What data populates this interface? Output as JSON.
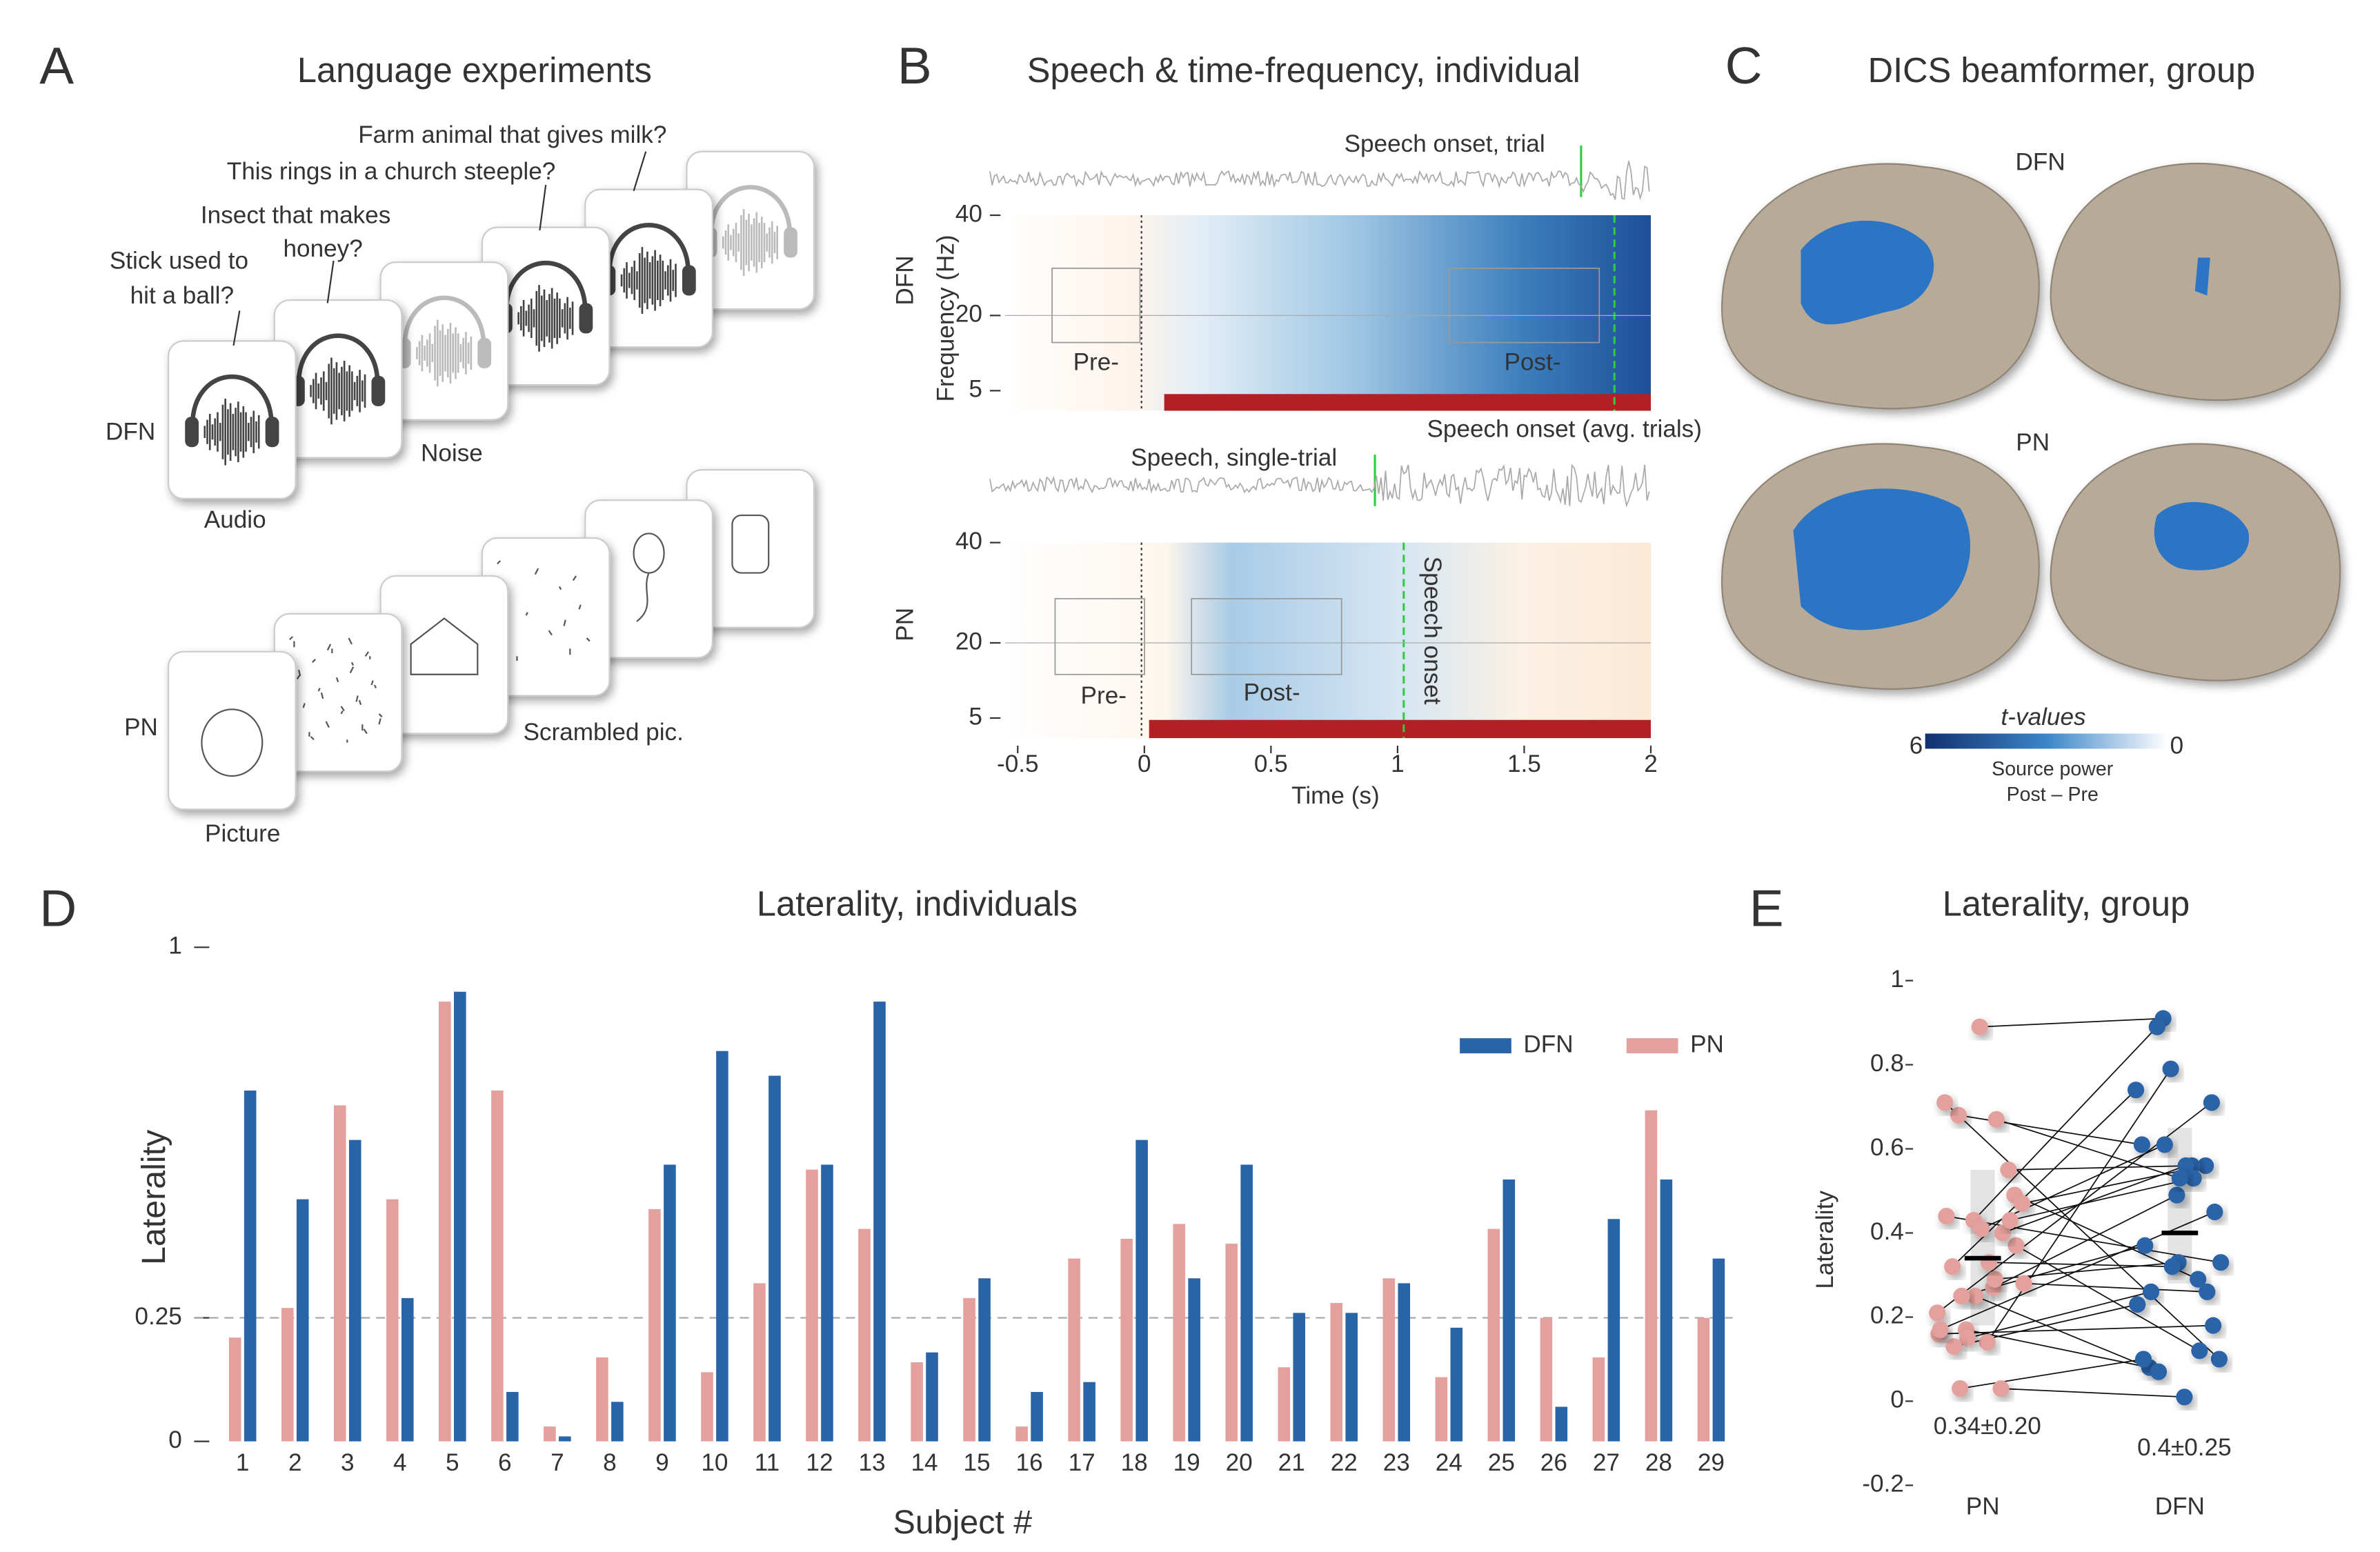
{
  "panels": {
    "A": {
      "letter": "A",
      "title": "Language experiments",
      "questions": [
        [
          "Farm animal that gives milk?"
        ],
        [
          "This rings in a church steeple?"
        ],
        [
          "Insect that makes",
          "honey?"
        ],
        [
          "Stick used to",
          "hit a ball?"
        ]
      ],
      "labels": {
        "dfn": "DFN",
        "audio": "Audio",
        "noise": "Noise",
        "pn": "PN",
        "picture": "Picture",
        "scrambled": "Scrambled pic."
      }
    },
    "B": {
      "letter": "B",
      "title": "Speech & time-frequency, individual",
      "rows": [
        "DFN",
        "PN"
      ],
      "ylabel": "Frequency (Hz)",
      "xlabel": "Time (s)",
      "xlim": [
        -0.55,
        2
      ],
      "xticks": [
        -0.5,
        0,
        0.5,
        1,
        1.5,
        2
      ],
      "ylim": [
        1,
        40
      ],
      "yticks": [
        5,
        20,
        40
      ],
      "annotations": {
        "onset_trial": "Speech onset, trial",
        "onset_avg": "Speech onset (avg. trials)",
        "single": "Speech, single-trial",
        "onset": "Speech onset",
        "pre": "Pre-",
        "post": "Post-"
      }
    },
    "C": {
      "letter": "C",
      "title": "DICS beamformer, group",
      "rows": [
        "DFN",
        "PN"
      ],
      "colorbar": {
        "title": "t-values",
        "min_label": "6",
        "max_label": "0",
        "caption": [
          "Source power",
          "Post – Pre"
        ]
      }
    }
  },
  "chart_data": [
    {
      "type": "bar",
      "letter": "D",
      "title": "Laterality, individuals",
      "ylabel": "Laterality",
      "xlabel": "Subject #",
      "categories": [
        "1",
        "2",
        "3",
        "4",
        "5",
        "6",
        "7",
        "8",
        "9",
        "10",
        "11",
        "12",
        "13",
        "14",
        "15",
        "16",
        "17",
        "18",
        "19",
        "20",
        "21",
        "22",
        "23",
        "24",
        "25",
        "26",
        "27",
        "28",
        "29"
      ],
      "series": [
        {
          "name": "DFN",
          "color": "#2a64a8",
          "values": [
            0.71,
            0.49,
            0.61,
            0.29,
            0.91,
            0.1,
            0.01,
            0.08,
            0.56,
            0.79,
            0.74,
            0.56,
            0.89,
            0.18,
            0.33,
            0.1,
            0.12,
            0.61,
            0.33,
            0.56,
            0.26,
            0.26,
            0.32,
            0.23,
            0.53,
            0.07,
            0.45,
            0.53,
            0.37
          ]
        },
        {
          "name": "PN",
          "color": "#e3a09c",
          "values": [
            0.21,
            0.27,
            0.68,
            0.49,
            0.89,
            0.71,
            0.03,
            0.17,
            0.47,
            0.14,
            0.32,
            0.55,
            0.43,
            0.16,
            0.29,
            0.03,
            0.37,
            0.41,
            0.44,
            0.4,
            0.15,
            0.28,
            0.33,
            0.13,
            0.43,
            0.25,
            0.17,
            0.67,
            0.25
          ]
        }
      ],
      "ylim": [
        0,
        1
      ],
      "yticks": [
        0,
        0.25,
        1
      ],
      "hline": 0.25,
      "legend": "upper right"
    },
    {
      "type": "scatter",
      "letter": "E",
      "title": "Laterality, group",
      "ylabel": "Laterality",
      "categories": [
        "PN",
        "DFN"
      ],
      "ylim": [
        -0.2,
        1
      ],
      "yticks": [
        -0.2,
        0,
        0.2,
        0.4,
        0.6,
        0.8,
        1
      ],
      "means": [
        0.34,
        0.4
      ],
      "mean_labels": [
        "0.34±0.20",
        "0.4±0.25"
      ]
    }
  ]
}
